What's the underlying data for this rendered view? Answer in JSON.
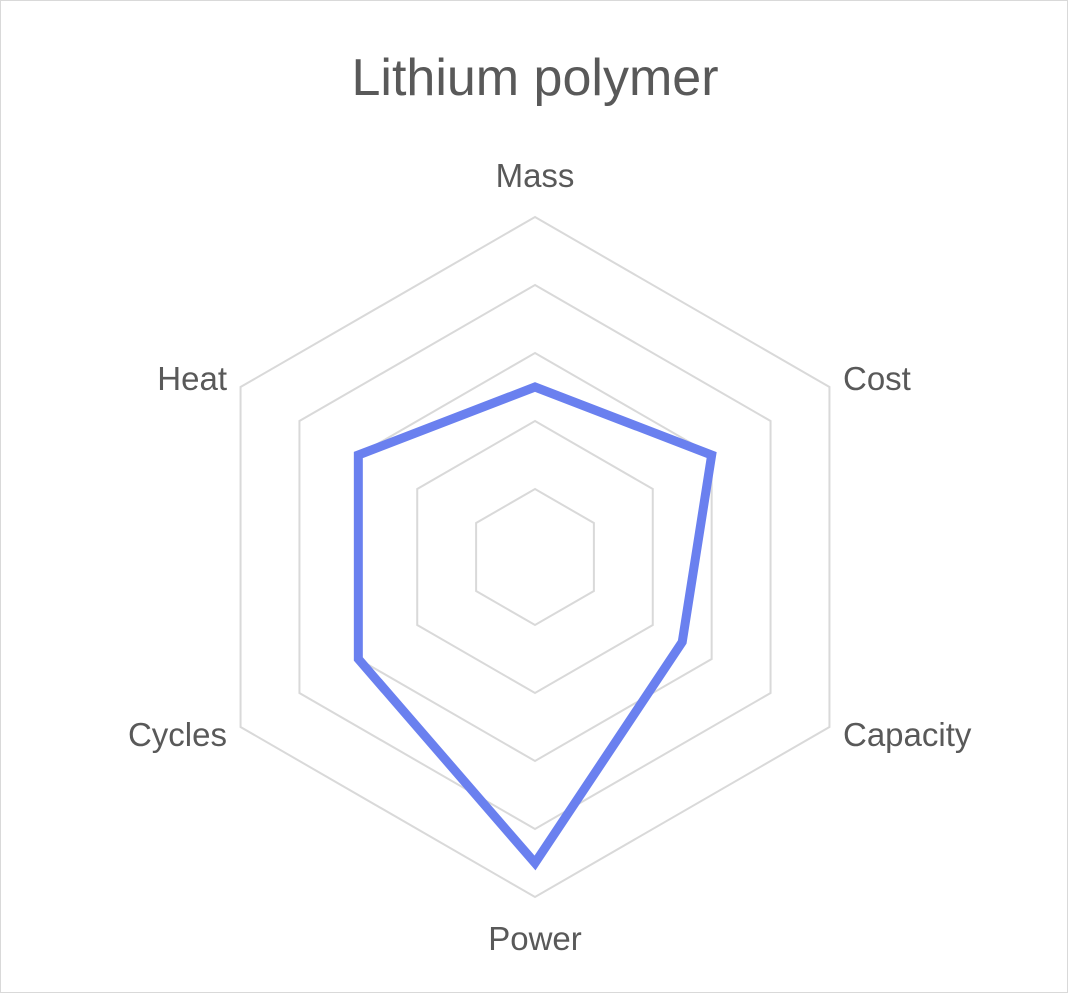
{
  "chart_data": {
    "type": "radar",
    "title": "Lithium polymer",
    "categories": [
      "Mass",
      "Cost",
      "Capacity",
      "Power",
      "Cycles",
      "Heat"
    ],
    "rlim": [
      0,
      5
    ],
    "grid_levels": 5,
    "grid": true,
    "legend": "none",
    "series": [
      {
        "values": [
          2.5,
          3.0,
          2.5,
          4.5,
          3.0,
          3.0
        ],
        "color": "#6a80ef"
      }
    ],
    "grid_color": "#d9d9d9",
    "text_color": "#595959"
  }
}
